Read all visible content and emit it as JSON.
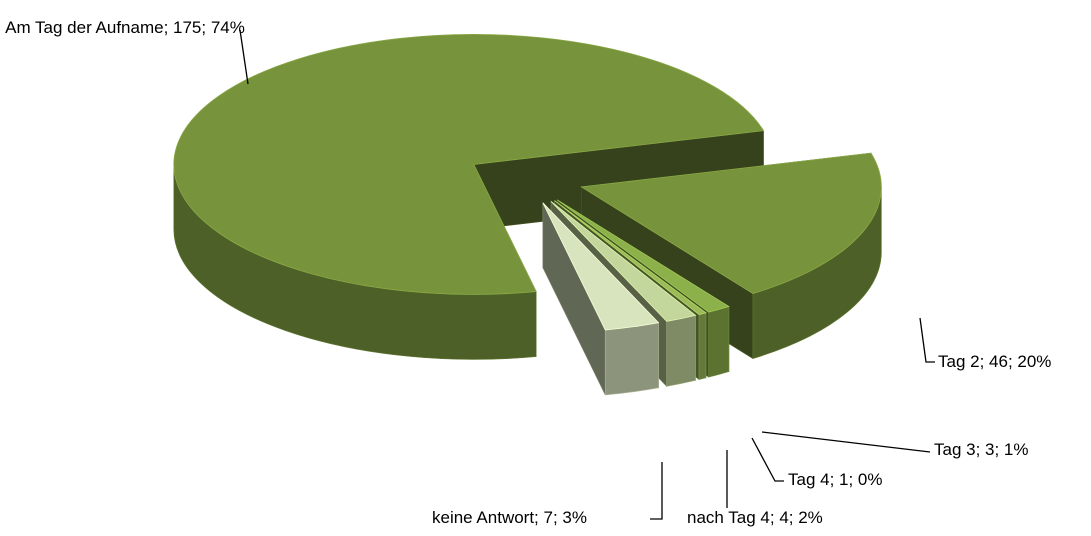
{
  "chart_data": {
    "type": "pie3d",
    "values": [
      175,
      46,
      3,
      1,
      4,
      7
    ],
    "value_labels": [
      "Am Tag der Aufname; 175; 74%",
      "Tag 2; 46; 20%",
      "Tag 3; 3; 1%",
      "Tag 4; 1; 0%",
      "nach Tag 4; 4; 2%",
      "keine Antwort; 7; 3%"
    ],
    "colors": [
      "#77933c",
      "#77933c",
      "#8cb04a",
      "#9bbb59",
      "#c3d69b",
      "#d7e4bd"
    ],
    "exploded": true
  }
}
